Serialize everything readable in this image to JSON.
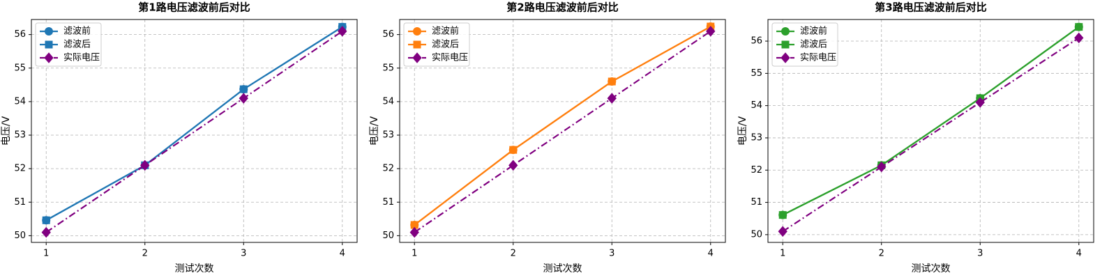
{
  "chart_data": [
    {
      "type": "line",
      "title": "第1路电压滤波前后对比",
      "x_label": "测试次数",
      "y_label": "电压/V",
      "x": [
        1,
        2,
        3,
        4
      ],
      "xlim": [
        0.85,
        4.15
      ],
      "xticks": [
        1,
        2,
        3,
        4
      ],
      "ylim": [
        49.8,
        56.45
      ],
      "yticks": [
        50,
        51,
        52,
        53,
        54,
        55,
        56
      ],
      "grid": true,
      "legend": "upper left",
      "series": [
        {
          "name": "滤波前",
          "color": "#1f77b4",
          "marker": "circle",
          "linestyle": "solid",
          "values": [
            50.46,
            52.1,
            54.37,
            56.23
          ]
        },
        {
          "name": "滤波后",
          "color": "#1f77b4",
          "marker": "square",
          "linestyle": "solid",
          "values": [
            50.46,
            52.1,
            54.37,
            56.23
          ]
        },
        {
          "name": "实际电压",
          "color": "#800080",
          "marker": "diamond",
          "linestyle": "dashdot",
          "values": [
            50.1,
            52.1,
            54.1,
            56.1
          ]
        }
      ]
    },
    {
      "type": "line",
      "title": "第2路电压滤波前后对比",
      "x_label": "测试次数",
      "y_label": "电压/V",
      "x": [
        1,
        2,
        3,
        4
      ],
      "xlim": [
        0.85,
        4.15
      ],
      "xticks": [
        1,
        2,
        3,
        4
      ],
      "ylim": [
        49.8,
        56.45
      ],
      "yticks": [
        50,
        51,
        52,
        53,
        54,
        55,
        56
      ],
      "grid": true,
      "legend": "upper left",
      "series": [
        {
          "name": "滤波前",
          "color": "#ff7f0e",
          "marker": "circle",
          "linestyle": "solid",
          "values": [
            50.32,
            52.56,
            54.6,
            56.24
          ]
        },
        {
          "name": "滤波后",
          "color": "#ff7f0e",
          "marker": "square",
          "linestyle": "solid",
          "values": [
            50.32,
            52.56,
            54.6,
            56.24
          ]
        },
        {
          "name": "实际电压",
          "color": "#800080",
          "marker": "diamond",
          "linestyle": "dashdot",
          "values": [
            50.1,
            52.1,
            54.1,
            56.1
          ]
        }
      ]
    },
    {
      "type": "line",
      "title": "第3路电压滤波前后对比",
      "x_label": "测试次数",
      "y_label": "电压/V",
      "x": [
        1,
        2,
        3,
        4
      ],
      "xlim": [
        0.85,
        4.15
      ],
      "xticks": [
        1,
        2,
        3,
        4
      ],
      "ylim": [
        49.76,
        56.67
      ],
      "yticks": [
        50,
        51,
        52,
        53,
        54,
        55,
        56
      ],
      "grid": true,
      "legend": "upper left",
      "series": [
        {
          "name": "滤波前",
          "color": "#2ca02c",
          "marker": "circle",
          "linestyle": "solid",
          "values": [
            50.61,
            52.15,
            54.23,
            56.44
          ]
        },
        {
          "name": "滤波后",
          "color": "#2ca02c",
          "marker": "square",
          "linestyle": "solid",
          "values": [
            50.61,
            52.15,
            54.23,
            56.44
          ]
        },
        {
          "name": "实际电压",
          "color": "#800080",
          "marker": "diamond",
          "linestyle": "dashdot",
          "values": [
            50.1,
            52.1,
            54.1,
            56.1
          ]
        }
      ]
    }
  ]
}
